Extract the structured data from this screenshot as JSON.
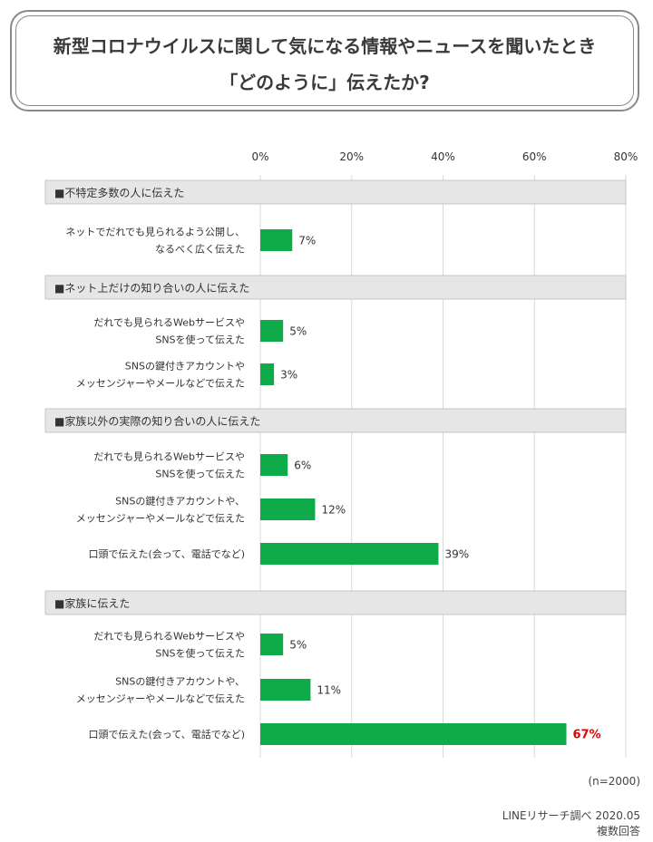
{
  "title": {
    "line1": "新型コロナウイルスに関して気になる情報やニュースを聞いたとき",
    "line2": "「どのように」伝えたか?"
  },
  "colors": {
    "bar": "#0fab4a",
    "highlight_label": "#e60000",
    "group_bg": "#e6e6e6",
    "grid": "#d9d9d9"
  },
  "chart_data": {
    "type": "bar",
    "orientation": "horizontal",
    "unit": "%",
    "xlim": [
      0,
      80
    ],
    "ticks": [
      "0%",
      "20%",
      "40%",
      "60%",
      "80%"
    ],
    "tick_values": [
      0,
      20,
      40,
      60,
      80
    ],
    "grid": true,
    "groups": [
      {
        "label": "■不特定多数の人に伝えた",
        "items": [
          {
            "category": [
              "ネットでだれでも見られるよう公開し、",
              "なるべく広く伝えた"
            ],
            "value": 7,
            "value_label": "7%"
          }
        ]
      },
      {
        "label": "■ネット上だけの知り合いの人に伝えた",
        "items": [
          {
            "category": [
              "だれでも見られるWebサービスや",
              "SNSを使って伝えた"
            ],
            "value": 5,
            "value_label": "5%"
          },
          {
            "category": [
              "SNSの鍵付きアカウントや",
              "メッセンジャーやメールなどで伝えた"
            ],
            "value": 3,
            "value_label": "3%"
          }
        ]
      },
      {
        "label": "■家族以外の実際の知り合いの人に伝えた",
        "items": [
          {
            "category": [
              "だれでも見られるWebサービスや",
              "SNSを使って伝えた"
            ],
            "value": 6,
            "value_label": "6%"
          },
          {
            "category": [
              "SNSの鍵付きアカウントや、",
              "メッセンジャーやメールなどで伝えた"
            ],
            "value": 12,
            "value_label": "12%"
          },
          {
            "category": [
              "口頭で伝えた(会って、電話でなど)"
            ],
            "value": 39,
            "value_label": "39%"
          }
        ]
      },
      {
        "label": "■家族に伝えた",
        "items": [
          {
            "category": [
              "だれでも見られるWebサービスや",
              "SNSを使って伝えた"
            ],
            "value": 5,
            "value_label": "5%"
          },
          {
            "category": [
              "SNSの鍵付きアカウントや、",
              "メッセンジャーやメールなどで伝えた"
            ],
            "value": 11,
            "value_label": "11%"
          },
          {
            "category": [
              "口頭で伝えた(会って、電話でなど)"
            ],
            "value": 67,
            "value_label": "67%",
            "highlight": true
          }
        ]
      }
    ]
  },
  "footer": {
    "n": "(n=2000)",
    "source": "LINEリサーチ調べ 2020.05",
    "note": "複数回答"
  }
}
